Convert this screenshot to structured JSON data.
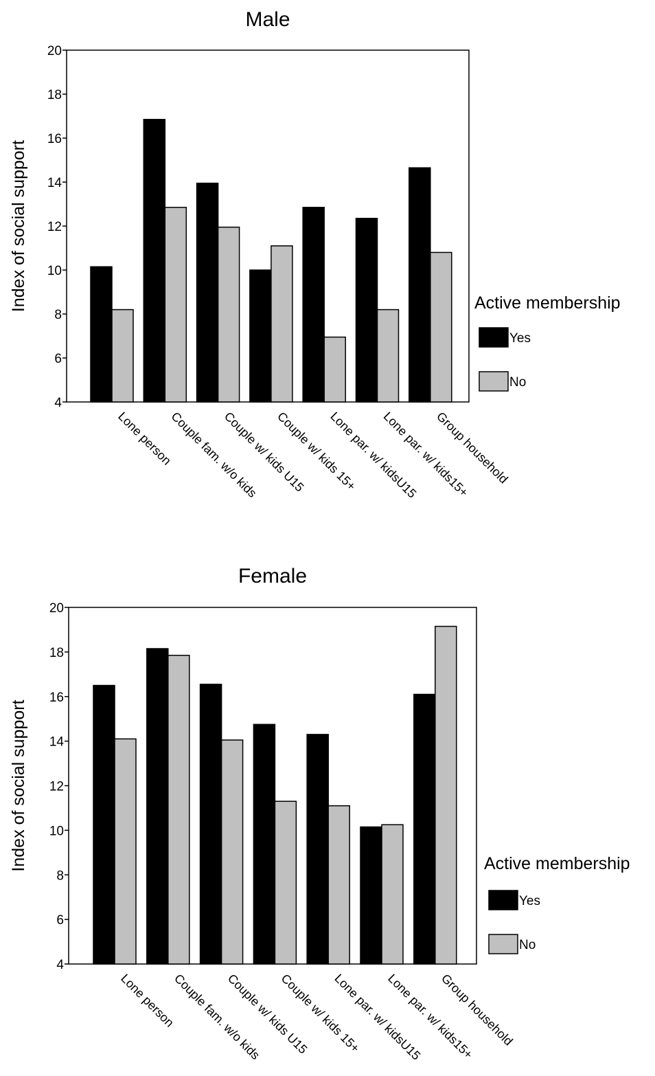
{
  "chart_data": [
    {
      "type": "bar",
      "title": "Male",
      "ylabel": "Index of social support",
      "xlabel": "",
      "ylim": [
        4,
        20
      ],
      "yticks": [
        4,
        6,
        8,
        10,
        12,
        14,
        16,
        18,
        20
      ],
      "grid": false,
      "categories": [
        "Lone person",
        "Couple fam. w/o kids",
        "Couple w/ kids U15",
        "Couple w/ kids 15+",
        "Lone par. w/ kidsU15",
        "Lone par. w/ kids15+",
        "Group household"
      ],
      "legend": {
        "title": "Active membership",
        "placement": "right"
      },
      "series": [
        {
          "name": "Yes",
          "color": "#000000",
          "values": [
            10.15,
            16.85,
            13.95,
            10.0,
            12.85,
            12.35,
            14.65
          ]
        },
        {
          "name": "No",
          "color": "#c0c0c0",
          "values": [
            8.2,
            12.85,
            11.95,
            11.1,
            6.95,
            8.2,
            10.8
          ]
        }
      ]
    },
    {
      "type": "bar",
      "title": "Female",
      "ylabel": "Index of social support",
      "xlabel": "",
      "ylim": [
        4,
        20
      ],
      "yticks": [
        4,
        6,
        8,
        10,
        12,
        14,
        16,
        18,
        20
      ],
      "grid": false,
      "categories": [
        "Lone person",
        "Couple fam. w/o kids",
        "Couple w/ kids U15",
        "Couple w/ kids 15+",
        "Lone par. w/ kidsU15",
        "Lone par. w/ kids15+",
        "Group household"
      ],
      "legend": {
        "title": "Active membership",
        "placement": "right"
      },
      "series": [
        {
          "name": "Yes",
          "color": "#000000",
          "values": [
            16.5,
            18.15,
            16.55,
            14.75,
            14.3,
            10.15,
            16.1
          ]
        },
        {
          "name": "No",
          "color": "#c0c0c0",
          "values": [
            14.1,
            17.85,
            14.05,
            11.3,
            11.1,
            10.25,
            19.15
          ]
        }
      ]
    }
  ]
}
